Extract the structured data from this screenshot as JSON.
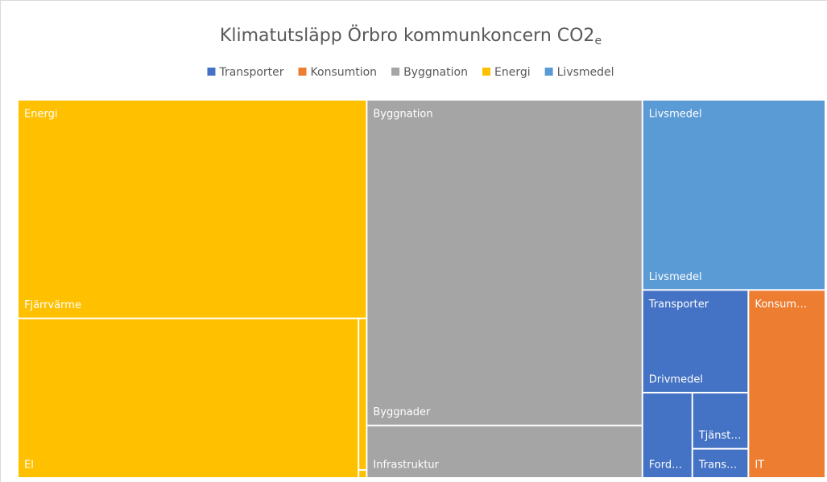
{
  "chart_data": {
    "type": "treemap",
    "title": "Klimatutsläpp Örbro kommunkoncern  CO2",
    "title_subscript": "e",
    "series": [
      {
        "name": "Transporter",
        "label": "Transporter",
        "color": "#4472c4",
        "categories": [
          "Drivmedel",
          "Ford…",
          "Tjänst…",
          "Trans…"
        ],
        "values": [
          16.6,
          6.5,
          4.8,
          2.5
        ]
      },
      {
        "name": "Konsumtion",
        "label": "Konsum…",
        "color": "#ed7d31",
        "categories": [
          "IT"
        ],
        "values": [
          22.1
        ]
      },
      {
        "name": "Byggnation",
        "label": "Byggnation",
        "color": "#a5a5a5",
        "categories": [
          "Byggnader",
          "Infrastruktur"
        ],
        "values": [
          137.0,
          22.1
        ]
      },
      {
        "name": "Energi",
        "label": "Energi",
        "color": "#ffc000",
        "categories": [
          "Fjärrvärme",
          "El",
          null,
          null
        ],
        "values": [
          116.4,
          83.0,
          1.9,
          0.1
        ]
      },
      {
        "name": "Livsmedel",
        "label": "Livsmedel",
        "color": "#5b9bd5",
        "categories": [
          "Livsmedel"
        ],
        "values": [
          53.1
        ]
      }
    ]
  }
}
